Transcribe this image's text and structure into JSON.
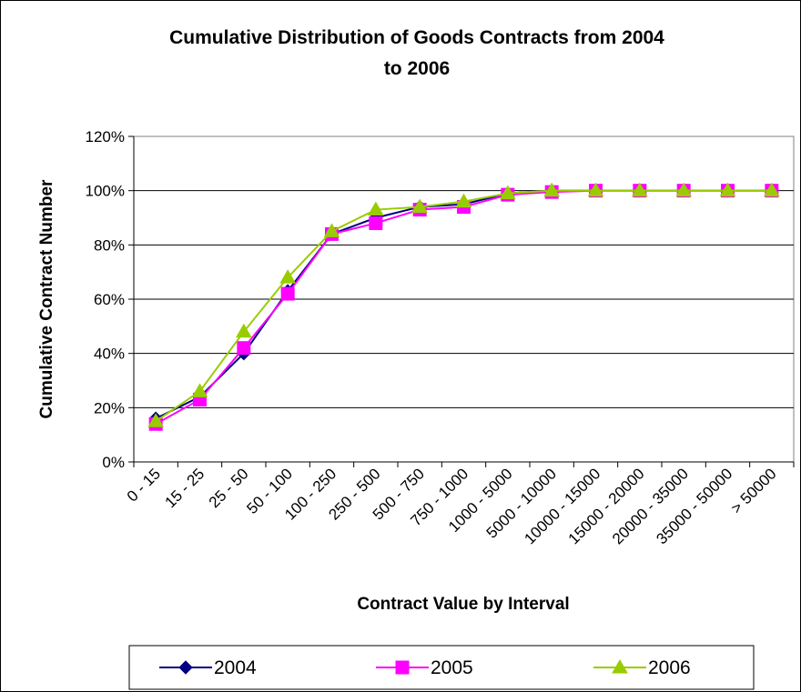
{
  "chart_data": {
    "type": "line",
    "title": "Cumulative Distribution of Goods Contracts from 2004 to 2006",
    "title_lines": [
      "Cumulative Distribution of Goods Contracts from 2004",
      "to 2006"
    ],
    "xlabel": "Contract Value by Interval",
    "ylabel": "Cumulative Contract Number",
    "ylim": [
      0,
      1.2
    ],
    "y_ticks": [
      "0%",
      "20%",
      "40%",
      "60%",
      "80%",
      "100%",
      "120%"
    ],
    "categories": [
      "0 - 15",
      "15 - 25",
      "25 - 50",
      "50 - 100",
      "100 - 250",
      "250 - 500",
      "500 - 750",
      "750 - 1000",
      "1000 - 5000",
      "5000 - 10000",
      "10000 - 15000",
      "15000 - 20000",
      "20000 - 35000",
      "35000 - 50000",
      "> 50000"
    ],
    "series": [
      {
        "name": "2004",
        "color": "#000080",
        "marker": "diamond",
        "values": [
          0.16,
          0.24,
          0.4,
          0.63,
          0.84,
          0.9,
          0.94,
          0.95,
          0.99,
          1.0,
          1.0,
          1.0,
          1.0,
          1.0,
          1.0
        ]
      },
      {
        "name": "2005",
        "color": "#FF00FF",
        "marker": "square",
        "values": [
          0.14,
          0.23,
          0.42,
          0.62,
          0.84,
          0.88,
          0.93,
          0.94,
          0.985,
          0.995,
          1.0,
          1.0,
          1.0,
          1.0,
          1.0
        ]
      },
      {
        "name": "2006",
        "color": "#99CC00",
        "marker": "triangle",
        "values": [
          0.15,
          0.26,
          0.48,
          0.68,
          0.85,
          0.93,
          0.94,
          0.96,
          0.99,
          1.0,
          1.0,
          1.0,
          1.0,
          1.0,
          1.0
        ]
      }
    ],
    "grid": true,
    "legend_position": "bottom"
  }
}
